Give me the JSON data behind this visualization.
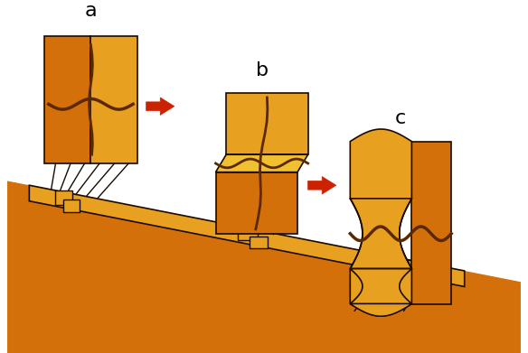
{
  "bg_color": "#ffffff",
  "oc": "#D4700A",
  "ol": "#E8A020",
  "ob": "#F0C030",
  "cc": "#5C2800",
  "ec": "#1a0a00",
  "ac": "#CC2200",
  "label_a": "a",
  "label_b": "b",
  "label_c": "c",
  "label_fontsize": 16
}
